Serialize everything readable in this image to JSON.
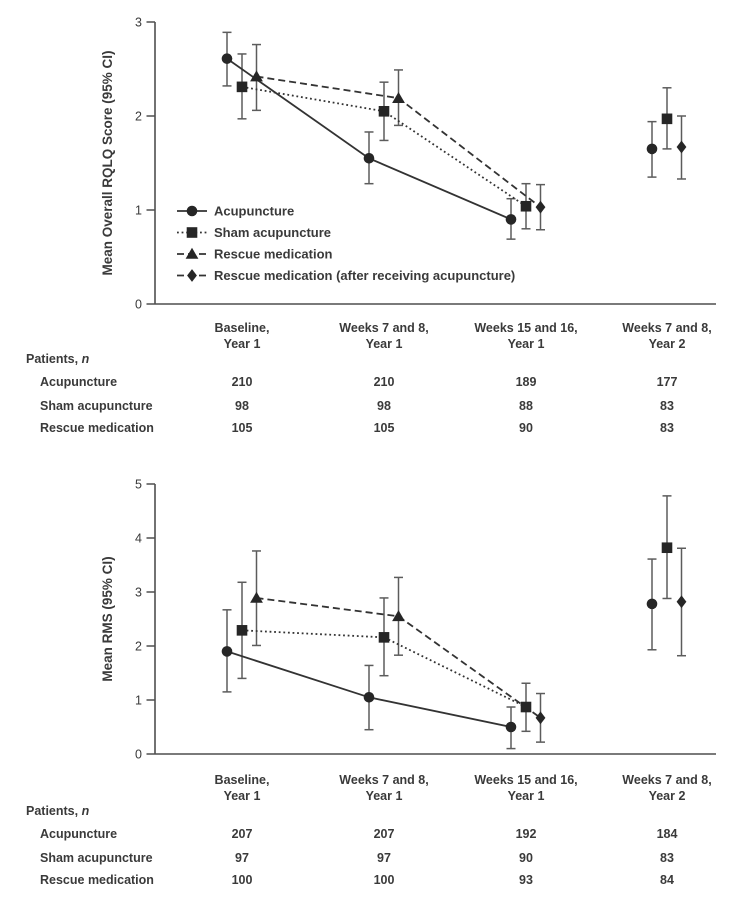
{
  "figure": {
    "marker_color": "#262626",
    "line_color": "#333333",
    "whisker_color": "#5c5c5c",
    "axis_color": "#4f4f4f",
    "text_color": "#3a3a3a"
  },
  "columns": [
    {
      "line1": "Baseline,",
      "line2": "Year 1"
    },
    {
      "line1": "Weeks 7 and 8,",
      "line2": "Year 1"
    },
    {
      "line1": "Weeks 15 and 16,",
      "line2": "Year 1"
    },
    {
      "line1": "Weeks 7 and 8,",
      "line2": "Year 2"
    }
  ],
  "chart_data": [
    {
      "type": "line",
      "title": "",
      "ylabel": "Mean Overall RQLQ Score (95% CI)",
      "xlabel": "",
      "ylim": [
        0,
        3
      ],
      "yticks": [
        0,
        1,
        2,
        3
      ],
      "grid": false,
      "legend_position": "inside-bottom-left",
      "show_legend": true,
      "categories": [
        "Baseline, Year 1",
        "Weeks 7 and 8, Year 1",
        "Weeks 15 and 16, Year 1",
        "Weeks 7 and 8, Year 2"
      ],
      "series": [
        {
          "name": "Acupuncture",
          "marker": "circle",
          "line_style": "solid",
          "points": [
            {
              "x": 0,
              "mean": 2.61,
              "ci_low": 2.32,
              "ci_high": 2.89
            },
            {
              "x": 1,
              "mean": 1.55,
              "ci_low": 1.28,
              "ci_high": 1.83
            },
            {
              "x": 2,
              "mean": 0.9,
              "ci_low": 0.69,
              "ci_high": 1.12
            },
            {
              "x": 3,
              "mean": 1.65,
              "ci_low": 1.35,
              "ci_high": 1.94
            }
          ]
        },
        {
          "name": "Sham acupuncture",
          "marker": "square",
          "line_style": "dotted",
          "points": [
            {
              "x": 0,
              "mean": 2.31,
              "ci_low": 1.97,
              "ci_high": 2.66
            },
            {
              "x": 1,
              "mean": 2.05,
              "ci_low": 1.74,
              "ci_high": 2.36
            },
            {
              "x": 2,
              "mean": 1.04,
              "ci_low": 0.8,
              "ci_high": 1.28
            },
            {
              "x": 3,
              "mean": 1.97,
              "ci_low": 1.65,
              "ci_high": 2.3
            }
          ]
        },
        {
          "name": "Rescue medication",
          "marker": "triangle",
          "line_style": "dashed",
          "points": [
            {
              "x": 0,
              "mean": 2.42,
              "ci_low": 2.06,
              "ci_high": 2.76
            },
            {
              "x": 1,
              "mean": 2.19,
              "ci_low": 1.9,
              "ci_high": 2.49
            }
          ]
        },
        {
          "name": "Rescue medication (after receiving acupuncture)",
          "marker": "diamond",
          "line_style": "dashed",
          "points": [
            {
              "x": 2,
              "mean": 1.03,
              "ci_low": 0.79,
              "ci_high": 1.27
            },
            {
              "x": 3,
              "mean": 1.67,
              "ci_low": 1.33,
              "ci_high": 2.0
            }
          ]
        }
      ],
      "connections": [
        {
          "style": "solid",
          "through": [
            [
              0,
              0
            ],
            [
              0,
              1
            ],
            [
              0,
              2
            ]
          ]
        },
        {
          "style": "dotted",
          "through": [
            [
              1,
              0
            ],
            [
              1,
              1
            ],
            [
              1,
              2
            ]
          ]
        },
        {
          "style": "dashed",
          "through": [
            [
              2,
              0
            ],
            [
              2,
              1
            ],
            [
              3,
              0
            ]
          ]
        }
      ]
    },
    {
      "type": "line",
      "title": "",
      "ylabel": "Mean RMS (95% CI)",
      "xlabel": "",
      "ylim": [
        0,
        5
      ],
      "yticks": [
        0,
        1,
        2,
        3,
        4,
        5
      ],
      "grid": false,
      "show_legend": false,
      "categories": [
        "Baseline, Year 1",
        "Weeks 7 and 8, Year 1",
        "Weeks 15 and 16, Year 1",
        "Weeks 7 and 8, Year 2"
      ],
      "series": [
        {
          "name": "Acupuncture",
          "marker": "circle",
          "line_style": "solid",
          "points": [
            {
              "x": 0,
              "mean": 1.9,
              "ci_low": 1.15,
              "ci_high": 2.67
            },
            {
              "x": 1,
              "mean": 1.05,
              "ci_low": 0.45,
              "ci_high": 1.64
            },
            {
              "x": 2,
              "mean": 0.5,
              "ci_low": 0.1,
              "ci_high": 0.87
            },
            {
              "x": 3,
              "mean": 2.78,
              "ci_low": 1.93,
              "ci_high": 3.61
            }
          ]
        },
        {
          "name": "Sham acupuncture",
          "marker": "square",
          "line_style": "dotted",
          "points": [
            {
              "x": 0,
              "mean": 2.29,
              "ci_low": 1.4,
              "ci_high": 3.18
            },
            {
              "x": 1,
              "mean": 2.16,
              "ci_low": 1.45,
              "ci_high": 2.89
            },
            {
              "x": 2,
              "mean": 0.87,
              "ci_low": 0.42,
              "ci_high": 1.31
            },
            {
              "x": 3,
              "mean": 3.82,
              "ci_low": 2.88,
              "ci_high": 4.78
            }
          ]
        },
        {
          "name": "Rescue medication",
          "marker": "triangle",
          "line_style": "dashed",
          "points": [
            {
              "x": 0,
              "mean": 2.89,
              "ci_low": 2.01,
              "ci_high": 3.76
            },
            {
              "x": 1,
              "mean": 2.55,
              "ci_low": 1.83,
              "ci_high": 3.27
            }
          ]
        },
        {
          "name": "Rescue medication (after receiving acupuncture)",
          "marker": "diamond",
          "line_style": "dashed",
          "points": [
            {
              "x": 2,
              "mean": 0.67,
              "ci_low": 0.22,
              "ci_high": 1.12
            },
            {
              "x": 3,
              "mean": 2.82,
              "ci_low": 1.82,
              "ci_high": 3.81
            }
          ]
        }
      ],
      "connections": [
        {
          "style": "solid",
          "through": [
            [
              0,
              0
            ],
            [
              0,
              1
            ],
            [
              0,
              2
            ]
          ]
        },
        {
          "style": "dotted",
          "through": [
            [
              1,
              0
            ],
            [
              1,
              1
            ],
            [
              1,
              2
            ]
          ]
        },
        {
          "style": "dashed",
          "through": [
            [
              2,
              0
            ],
            [
              2,
              1
            ],
            [
              3,
              0
            ]
          ]
        }
      ]
    }
  ],
  "tables": [
    {
      "caption_prefix": "Patients, ",
      "caption_italic": "n",
      "rows": [
        {
          "name": "Acupuncture",
          "values": [
            "210",
            "210",
            "189",
            "177"
          ]
        },
        {
          "name": "Sham acupuncture",
          "values": [
            "98",
            "98",
            "88",
            "83"
          ]
        },
        {
          "name": "Rescue medication",
          "values": [
            "105",
            "105",
            "90",
            "83"
          ]
        }
      ]
    },
    {
      "caption_prefix": "Patients, ",
      "caption_italic": "n",
      "rows": [
        {
          "name": "Acupuncture",
          "values": [
            "207",
            "207",
            "192",
            "184"
          ]
        },
        {
          "name": "Sham acupuncture",
          "values": [
            "97",
            "97",
            "90",
            "83"
          ]
        },
        {
          "name": "Rescue medication",
          "values": [
            "100",
            "100",
            "93",
            "84"
          ]
        }
      ]
    }
  ]
}
